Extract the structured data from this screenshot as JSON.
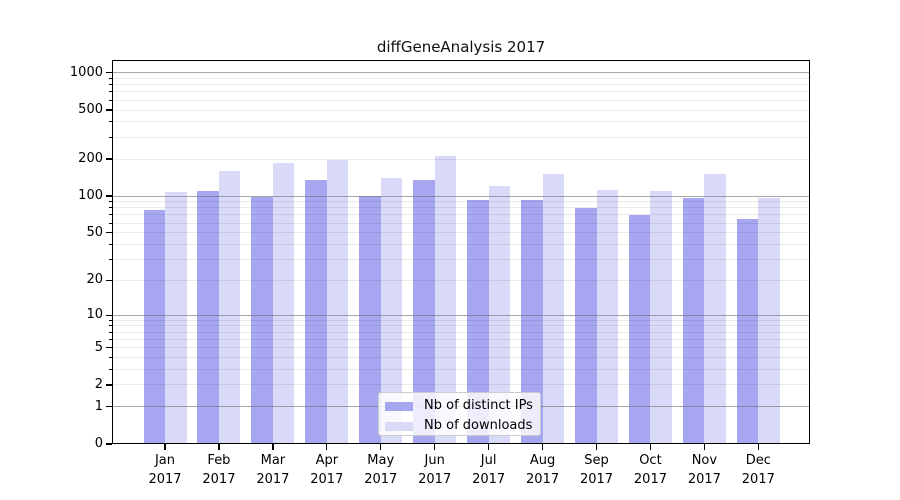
{
  "chart_data": {
    "type": "bar",
    "title": "diffGeneAnalysis 2017",
    "year_label": "2017",
    "categories": [
      "Jan",
      "Feb",
      "Mar",
      "Apr",
      "May",
      "Jun",
      "Jul",
      "Aug",
      "Sep",
      "Oct",
      "Nov",
      "Dec"
    ],
    "series": [
      {
        "name": "Nb of distinct IPs",
        "color": "#a7a7f1",
        "values": [
          77,
          111,
          98,
          134,
          100,
          134,
          93,
          93,
          80,
          70,
          97,
          65
        ]
      },
      {
        "name": "Nb of downloads",
        "color": "#d9d9f8",
        "values": [
          108,
          160,
          187,
          198,
          140,
          213,
          121,
          150,
          113,
          110,
          151,
          96
        ]
      }
    ],
    "xlabel": "",
    "ylabel": "",
    "yscale": "log10(1+value)",
    "ylim": [
      0,
      1250
    ],
    "yticks": [
      0,
      1,
      2,
      5,
      10,
      20,
      50,
      100,
      200,
      500,
      1000
    ],
    "grid": {
      "major_at": [
        1,
        10,
        100,
        1000
      ],
      "major_color": "rgba(110,110,110,0.6)",
      "minor_color": "rgba(0,0,0,0.08)",
      "drawn_over_bars": true
    },
    "legend": {
      "position": "lower-center",
      "entries": [
        "Nb of distinct IPs",
        "Nb of downloads"
      ]
    }
  }
}
